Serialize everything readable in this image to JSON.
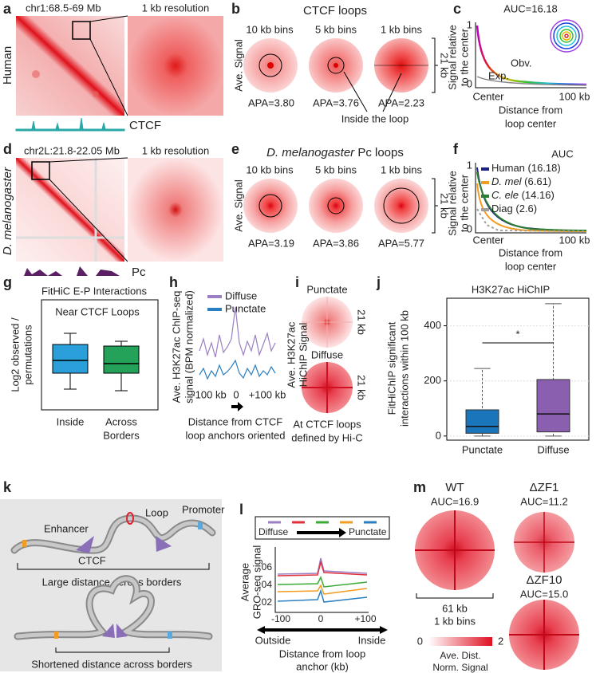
{
  "panels": {
    "a": {
      "letter": "a",
      "species": "Human",
      "region": "chr1:68.5-69 Mb",
      "zoom": "1 kb resolution",
      "track": "CTCF"
    },
    "b": {
      "letter": "b",
      "title": "CTCF loops",
      "ylabel": "Ave. Signal",
      "bins": [
        "10 kb bins",
        "5 kb bins",
        "1 kb bins"
      ],
      "apa": [
        "APA=3.80",
        "APA=3.76",
        "APA=2.23"
      ],
      "note": "Inside the loop",
      "size": "21 kb"
    },
    "c": {
      "letter": "c",
      "auc": "AUC=16.18",
      "ylabel": [
        "Signal relative",
        "to the center"
      ],
      "yticks": [
        "1",
        "0"
      ],
      "obs": "Obv.",
      "exp": "Exp.",
      "xticks": [
        "Center",
        "100 kb"
      ],
      "xlabel": [
        "Distance from",
        "loop center"
      ]
    },
    "d": {
      "letter": "d",
      "species": "D. melanogaster",
      "region": "chr2L:21.8-22.05 Mb",
      "zoom": "1 kb resolution",
      "track": "Pc"
    },
    "e": {
      "letter": "e",
      "title_italic": "D. melanogaster",
      "title_rest": " Pc loops",
      "ylabel": "Ave. Signal",
      "bins": [
        "10 kb bins",
        "5 kb bins",
        "1 kb bins"
      ],
      "apa": [
        "APA=3.19",
        "APA=3.86",
        "APA=5.77"
      ],
      "size": "21 kb"
    },
    "f": {
      "letter": "f",
      "legend_title": "AUC",
      "legend": [
        {
          "name": "Human",
          "auc": " (16.18)",
          "italic": false,
          "color": "#1a237e"
        },
        {
          "name": "D. mel",
          "auc": " (6.61)",
          "italic": true,
          "color": "#f39c24"
        },
        {
          "name": "C. ele",
          "auc": " (14.16)",
          "italic": true,
          "color": "#2e7d32"
        },
        {
          "name": "Diag",
          "auc": " (2.6)",
          "italic": false,
          "color": "#9e9e9e"
        }
      ],
      "ylabel": [
        "Signal relative",
        "to the center"
      ],
      "yticks": [
        "1",
        "0"
      ],
      "xticks": [
        "Center",
        "100 kb"
      ],
      "xlabel": [
        "Distance from",
        "loop center"
      ]
    },
    "g": {
      "letter": "g",
      "title": "FitHiC E-P Interactions",
      "subtitle": "Near CTCF Loops",
      "ylabel": [
        "Log2 observed /",
        "permutations"
      ],
      "categories": [
        "Inside",
        "Across"
      ],
      "category_extra": "Borders"
    },
    "h": {
      "letter": "h",
      "legend": [
        "Diffuse",
        "Punctate"
      ],
      "ylabel": [
        "Ave. H3K27ac ChIP-seq",
        "signal (BPM normalized)"
      ],
      "xticks": [
        "-100 kb",
        "0",
        "+100 kb"
      ],
      "xlabel": [
        "Distance from CTCF",
        "loop anchors oriented"
      ]
    },
    "i": {
      "letter": "i",
      "top": "Punctate",
      "bottom": "Diffuse",
      "size": "21 kb",
      "ylabel": [
        "Ave. H3K27ac",
        "HiChIP Signal"
      ],
      "caption": [
        "At CTCF loops",
        "defined by Hi-C"
      ]
    },
    "k": {
      "letter": "k",
      "enhancer": "Enhancer",
      "loop": "Loop",
      "promoter": "Promoter",
      "ctcf": "CTCF",
      "top_caption": "Large distance across borders",
      "bottom_caption": "Shortened distance across borders"
    },
    "l": {
      "letter": "l",
      "legend": [
        "Diffuse",
        "Punctate"
      ],
      "yticks": [
        ".06",
        ".04",
        ".02"
      ],
      "ylabel": [
        "Average",
        "GRO-seq signal"
      ],
      "xticks": [
        "-100",
        "0",
        "+100"
      ],
      "direction": [
        "Outside",
        "Inside"
      ],
      "xlabel": [
        "Distance from loop",
        "anchor (kb)"
      ]
    },
    "m": {
      "letter": "m",
      "maps": [
        {
          "name": "WT",
          "auc": "AUC=16.9"
        },
        {
          "name": "ΔZF1",
          "auc": "AUC=11.2"
        },
        {
          "name": "ΔZF10",
          "auc": "AUC=15.0"
        }
      ],
      "size": "61 kb",
      "bins": "1 kb bins",
      "scale": [
        "0",
        "2"
      ],
      "scale_label": [
        "Ave. Dist.",
        "Norm. Signal"
      ]
    }
  },
  "chart_data": {
    "type": "box",
    "letter": "j",
    "title": "H3K27ac HiChIP",
    "ylabel": [
      "FitHiChIP significant",
      "interactions within 100 kb"
    ],
    "categories": [
      "Punctate",
      "Diffuse"
    ],
    "boxes": [
      {
        "min": 0,
        "q1": 10,
        "median": 35,
        "q3": 95,
        "max": 245,
        "color": "#1b75bb"
      },
      {
        "min": 0,
        "q1": 15,
        "median": 80,
        "q3": 205,
        "max": 480,
        "color": "#8a5fb0"
      }
    ],
    "annotation": "*",
    "ylim": [
      -15,
      500
    ],
    "yticks": [
      0,
      200,
      400
    ],
    "grid": true
  }
}
